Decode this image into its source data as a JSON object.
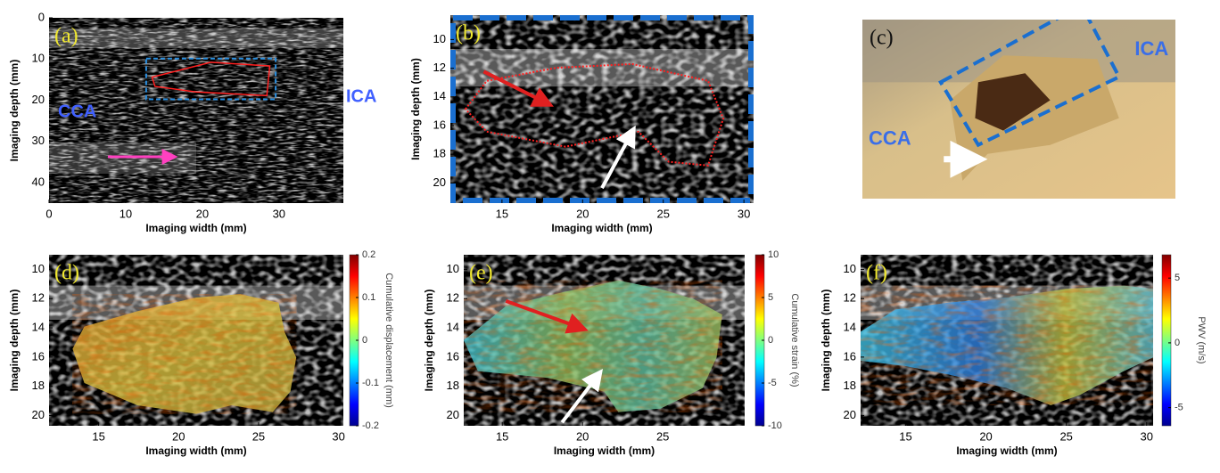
{
  "chart_data": [
    {
      "type": "image",
      "panel_label": "(a)",
      "annotations": [
        "CCA",
        "ICA"
      ],
      "xlabel": "Imaging width (mm)",
      "ylabel": "Imaging depth (mm)",
      "xlim": [
        0,
        38.4
      ],
      "ylim": [
        45,
        0
      ],
      "xticks": [
        0,
        10,
        20,
        30
      ],
      "yticks": [
        0,
        10,
        20,
        30,
        40
      ]
    },
    {
      "type": "image",
      "panel_label": "(b)",
      "xlabel": "Imaging width (mm)",
      "ylabel": "Imaging depth (mm)",
      "xlim": [
        11.8,
        30.6
      ],
      "ylim": [
        21.4,
        8.3
      ],
      "xticks": [
        15,
        20,
        25,
        30
      ],
      "yticks": [
        10,
        12,
        14,
        16,
        18,
        20
      ]
    },
    {
      "type": "photo",
      "panel_label": "(c)",
      "annotations": [
        "ICA",
        "CCA"
      ]
    },
    {
      "type": "image",
      "panel_label": "(d)",
      "xlabel": "Imaging width (mm)",
      "ylabel": "Imaging depth (mm)",
      "xlim": [
        11.9,
        30.3
      ],
      "ylim": [
        20.7,
        9.0
      ],
      "xticks": [
        15,
        20,
        25,
        30
      ],
      "yticks": [
        10,
        12,
        14,
        16,
        18,
        20
      ],
      "colorbar": {
        "label": "Cumulative displacement (mm)",
        "lim": [
          -0.2,
          0.2
        ],
        "ticks": [
          0.2,
          0.1,
          0,
          -0.1,
          -0.2
        ]
      }
    },
    {
      "type": "image",
      "panel_label": "(e)",
      "xlabel": "Imaging width (mm)",
      "ylabel": "Imaging depth (mm)",
      "xlim": [
        12.6,
        30.1
      ],
      "ylim": [
        20.7,
        9.0
      ],
      "xticks": [
        15,
        20,
        25
      ],
      "yticks": [
        10,
        12,
        14,
        16,
        18,
        20
      ],
      "colorbar": {
        "label": "Cumulative strain (%)",
        "lim": [
          -10,
          10
        ],
        "ticks": [
          10,
          5,
          0,
          -5,
          -10
        ]
      }
    },
    {
      "type": "image",
      "panel_label": "(f)",
      "xlabel": "Imaging width (mm)",
      "ylabel": "Imaging depth (mm)",
      "xlim": [
        12.2,
        30.4
      ],
      "ylim": [
        20.7,
        9.0
      ],
      "xticks": [
        15,
        20,
        25,
        30
      ],
      "yticks": [
        10,
        12,
        14,
        16,
        18,
        20
      ],
      "colorbar": {
        "label": "PWV (m/s)",
        "lim": [
          -6.4,
          6.8
        ],
        "ticks": [
          5,
          0,
          -5
        ]
      }
    }
  ]
}
